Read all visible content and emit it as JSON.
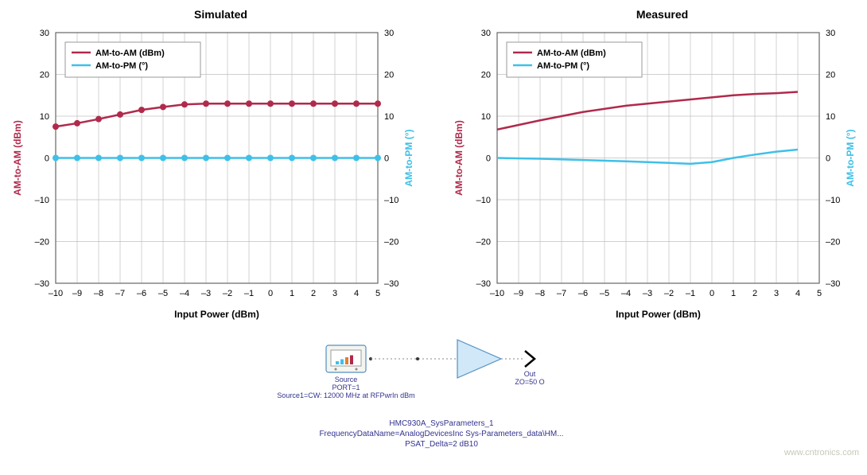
{
  "chart_left": {
    "type": "line",
    "title": "Simulated",
    "xlabel": "Input Power (dBm)",
    "ylabel_left": "AM-to-AM (dBm)",
    "ylabel_right": "AM-to-PM (°)",
    "xlim": [
      -10,
      5
    ],
    "ylim": [
      -30,
      30
    ],
    "xtick_step": 1,
    "ytick_step": 10,
    "xticks": [
      -10,
      -9,
      -8,
      -7,
      -6,
      -5,
      -4,
      -3,
      -2,
      -1,
      0,
      1,
      2,
      3,
      4,
      5
    ],
    "yticks": [
      -30,
      -20,
      -10,
      0,
      10,
      20,
      30
    ],
    "background_color": "#ffffff",
    "grid_color": "#c0c0c0",
    "axis_color": "#666666",
    "label_fontsize": 12,
    "tick_fontsize": 11,
    "title_fontsize": 14,
    "line_width": 2.5,
    "marker_size": 4,
    "series": [
      {
        "name": "AM-to-AM (dBm)",
        "color": "#b02a4c",
        "markers": true,
        "x": [
          -10,
          -9,
          -8,
          -7,
          -6,
          -5,
          -4,
          -3,
          -2,
          -1,
          0,
          1,
          2,
          3,
          4,
          5
        ],
        "y": [
          7.5,
          8.3,
          9.3,
          10.4,
          11.5,
          12.2,
          12.8,
          13.0,
          13.0,
          13.0,
          13.0,
          13.0,
          13.0,
          13.0,
          13.0,
          13.0
        ]
      },
      {
        "name": "AM-to-PM (°)",
        "color": "#3fc0e8",
        "markers": true,
        "x": [
          -10,
          -9,
          -8,
          -7,
          -6,
          -5,
          -4,
          -3,
          -2,
          -1,
          0,
          1,
          2,
          3,
          4,
          5
        ],
        "y": [
          0,
          0,
          0,
          0,
          0,
          0,
          0,
          0,
          0,
          0,
          0,
          0,
          0,
          0,
          0,
          0
        ]
      }
    ],
    "legend_position": "top-left",
    "legend_box_color": "#999999",
    "ylabel_left_color": "#b02a4c",
    "ylabel_right_color": "#3fc0e8"
  },
  "chart_right": {
    "type": "line",
    "title": "Measured",
    "xlabel": "Input Power (dBm)",
    "ylabel_left": "AM-to-AM (dBm)",
    "ylabel_right": "AM-to-PM (°)",
    "xlim": [
      -10,
      5
    ],
    "ylim": [
      -30,
      30
    ],
    "xtick_step": 1,
    "ytick_step": 10,
    "xticks": [
      -10,
      -9,
      -8,
      -7,
      -6,
      -5,
      -4,
      -3,
      -2,
      -1,
      0,
      1,
      2,
      3,
      4,
      5
    ],
    "yticks": [
      -30,
      -20,
      -10,
      0,
      10,
      20,
      30
    ],
    "background_color": "#ffffff",
    "grid_color": "#c0c0c0",
    "axis_color": "#666666",
    "label_fontsize": 12,
    "tick_fontsize": 11,
    "title_fontsize": 14,
    "line_width": 2.5,
    "marker_size": 0,
    "series": [
      {
        "name": "AM-to-AM (dBm)",
        "color": "#b02a4c",
        "markers": false,
        "x": [
          -10,
          -8,
          -6,
          -4,
          -2,
          0,
          1,
          2,
          3,
          4
        ],
        "y": [
          6.8,
          9.0,
          11.0,
          12.5,
          13.5,
          14.5,
          15.0,
          15.3,
          15.5,
          15.8
        ]
      },
      {
        "name": "AM-to-PM (°)",
        "color": "#3fc0e8",
        "markers": false,
        "x": [
          -10,
          -8,
          -6,
          -4,
          -2,
          -1,
          0,
          1,
          2,
          3,
          4
        ],
        "y": [
          0.0,
          -0.2,
          -0.5,
          -0.8,
          -1.2,
          -1.4,
          -1.0,
          0.0,
          0.8,
          1.5,
          2.0
        ]
      }
    ],
    "legend_position": "top-left",
    "legend_box_color": "#999999",
    "ylabel_left_color": "#b02a4c",
    "ylabel_right_color": "#3fc0e8"
  },
  "diagram": {
    "source_label": "Source",
    "source_port": "PORT=1",
    "source_desc": "Source1=CW: 12000 MHz at RFPwrIn dBm",
    "out_label": "Out",
    "out_imp": "ZO=50 O",
    "caption_line1": "HMC930A_SysParameters_1",
    "caption_line2": "FrequencyDataName=AnalogDevicesInc Sys-Parameters_data\\HM...",
    "caption_line3": "PSAT_Delta=2 dB10",
    "label_color": "#33338f",
    "amp_fill": "#d0e8f8",
    "amp_stroke": "#5590c0",
    "source_box_stroke": "#5590c0",
    "bar_colors": [
      "#3fc0e8",
      "#3fc0e8",
      "#e08030",
      "#b02a4c"
    ]
  },
  "watermark": "www.cntronics.com"
}
